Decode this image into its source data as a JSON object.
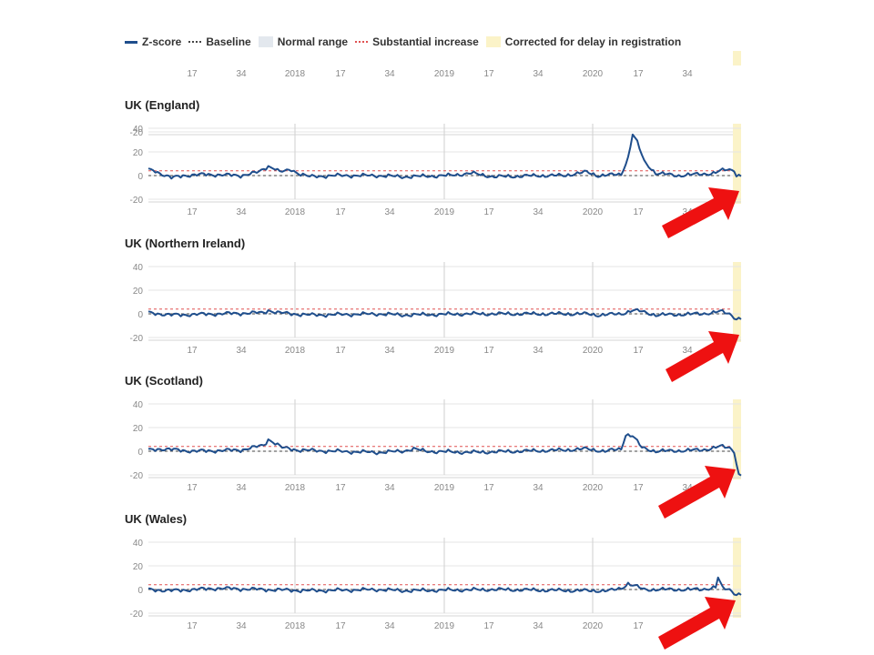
{
  "legend": {
    "zscore": "Z-score",
    "baseline": "Baseline",
    "normal_range": "Normal range",
    "substantial_increase": "Substantial increase",
    "corrected": "Corrected for delay in registration"
  },
  "colors": {
    "zscore": "#1f4e8c",
    "baseline": "#444444",
    "normal_range": "#e3e8ee",
    "substantial_increase": "#e05050",
    "corrected": "#fbf3c8",
    "arrow": "#ee1111",
    "grid": "#e6e6e6",
    "year_line": "#cfcfcf"
  },
  "icons": [
    "red-arrow-icon"
  ],
  "chart_data": [
    {
      "type": "line",
      "title": "",
      "partial": true,
      "yticks": [
        -20
      ],
      "ylim": [
        -20,
        40
      ],
      "xticks": [
        "17",
        "34",
        "2018",
        "17",
        "34",
        "2019",
        "17",
        "34",
        "2020",
        "17",
        "34"
      ],
      "series": [
        {
          "name": "Z-score",
          "values": []
        }
      ]
    },
    {
      "type": "line",
      "title": "UK (England)",
      "yticks": [
        40,
        20,
        0,
        -20
      ],
      "ylim": [
        -20,
        40
      ],
      "xticks": [
        "17",
        "34",
        "2018",
        "17",
        "34",
        "2019",
        "17",
        "34",
        "2020",
        "17",
        "34"
      ],
      "baseline": 0,
      "substantial_increase": 4,
      "series": [
        {
          "name": "Z-score",
          "keypoints": [
            [
              0,
              5
            ],
            [
              3,
              4
            ],
            [
              5,
              2
            ],
            [
              10,
              -2
            ],
            [
              15,
              0
            ],
            [
              25,
              1
            ],
            [
              40,
              0
            ],
            [
              48,
              3
            ],
            [
              52,
              8
            ],
            [
              55,
              6
            ],
            [
              57,
              3
            ],
            [
              60,
              4
            ],
            [
              62,
              5
            ],
            [
              65,
              2
            ],
            [
              70,
              -1
            ],
            [
              80,
              0
            ],
            [
              100,
              0
            ],
            [
              110,
              -1
            ],
            [
              130,
              0
            ],
            [
              140,
              2
            ],
            [
              150,
              -1
            ],
            [
              170,
              0
            ],
            [
              180,
              0
            ],
            [
              190,
              3
            ],
            [
              195,
              0
            ],
            [
              205,
              1
            ],
            [
              208,
              15
            ],
            [
              210,
              35
            ],
            [
              212,
              28
            ],
            [
              215,
              12
            ],
            [
              220,
              2
            ],
            [
              230,
              0
            ],
            [
              245,
              2
            ],
            [
              250,
              5
            ],
            [
              254,
              5
            ],
            [
              255,
              0
            ]
          ]
        }
      ]
    },
    {
      "type": "line",
      "title": "UK (Northern Ireland)",
      "yticks": [
        40,
        20,
        0,
        -20
      ],
      "ylim": [
        -20,
        40
      ],
      "xticks": [
        "17",
        "34",
        "2018",
        "17",
        "34",
        "2019",
        "17",
        "34",
        "2020",
        "17",
        "34"
      ],
      "baseline": 0,
      "substantial_increase": 4,
      "series": [
        {
          "name": "Z-score",
          "keypoints": [
            [
              0,
              1
            ],
            [
              10,
              -1
            ],
            [
              30,
              0
            ],
            [
              50,
              1
            ],
            [
              52,
              3
            ],
            [
              56,
              1
            ],
            [
              70,
              -1
            ],
            [
              100,
              0
            ],
            [
              110,
              -1
            ],
            [
              140,
              0
            ],
            [
              190,
              0
            ],
            [
              195,
              -1
            ],
            [
              205,
              0
            ],
            [
              210,
              3
            ],
            [
              214,
              2
            ],
            [
              220,
              -1
            ],
            [
              240,
              0
            ],
            [
              248,
              2
            ],
            [
              252,
              0
            ],
            [
              255,
              -4
            ]
          ]
        }
      ]
    },
    {
      "type": "line",
      "title": "UK (Scotland)",
      "yticks": [
        40,
        20,
        0,
        -20
      ],
      "ylim": [
        -20,
        40
      ],
      "xticks": [
        "17",
        "34",
        "2018",
        "17",
        "34",
        "2019",
        "17",
        "34",
        "2020",
        "17",
        "34"
      ],
      "baseline": 0,
      "substantial_increase": 4,
      "series": [
        {
          "name": "Z-score",
          "keypoints": [
            [
              0,
              1
            ],
            [
              5,
              2
            ],
            [
              20,
              0
            ],
            [
              40,
              1
            ],
            [
              50,
              5
            ],
            [
              52,
              10
            ],
            [
              54,
              8
            ],
            [
              58,
              3
            ],
            [
              65,
              1
            ],
            [
              80,
              0
            ],
            [
              100,
              -1
            ],
            [
              110,
              0
            ],
            [
              115,
              2
            ],
            [
              120,
              0
            ],
            [
              140,
              -1
            ],
            [
              160,
              0
            ],
            [
              180,
              1
            ],
            [
              190,
              2
            ],
            [
              198,
              0
            ],
            [
              205,
              2
            ],
            [
              207,
              14
            ],
            [
              210,
              13
            ],
            [
              214,
              3
            ],
            [
              220,
              0
            ],
            [
              240,
              1
            ],
            [
              248,
              4
            ],
            [
              252,
              3
            ],
            [
              254,
              0
            ],
            [
              256,
              -20
            ]
          ]
        }
      ]
    },
    {
      "type": "line",
      "title": "UK (Wales)",
      "yticks": [
        40,
        20,
        0,
        -20
      ],
      "ylim": [
        -20,
        40
      ],
      "xticks": [
        "17",
        "34",
        "2018",
        "17",
        "34",
        "2019",
        "17",
        "34",
        "2020",
        "17",
        "34"
      ],
      "baseline": 0,
      "substantial_increase": 4,
      "series": [
        {
          "name": "Z-score",
          "keypoints": [
            [
              0,
              0
            ],
            [
              10,
              -1
            ],
            [
              30,
              1
            ],
            [
              50,
              0
            ],
            [
              70,
              -1
            ],
            [
              100,
              0
            ],
            [
              110,
              -1
            ],
            [
              150,
              0
            ],
            [
              190,
              -1
            ],
            [
              200,
              -1
            ],
            [
              205,
              1
            ],
            [
              208,
              5
            ],
            [
              211,
              3
            ],
            [
              215,
              0
            ],
            [
              240,
              0
            ],
            [
              246,
              2
            ],
            [
              247,
              10
            ],
            [
              249,
              1
            ],
            [
              252,
              0
            ],
            [
              255,
              -4
            ]
          ]
        }
      ]
    }
  ]
}
